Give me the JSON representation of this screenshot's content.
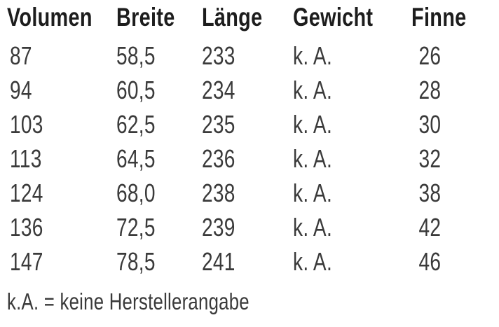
{
  "table": {
    "headers": [
      "Volumen",
      "Breite",
      "Länge",
      "Gewicht",
      "Finne"
    ],
    "rows": [
      [
        "87",
        "58,5",
        "233",
        "k. A.",
        "26"
      ],
      [
        "94",
        "60,5",
        "234",
        "k. A.",
        "28"
      ],
      [
        "103",
        "62,5",
        "235",
        "k. A.",
        "30"
      ],
      [
        "113",
        "64,5",
        "236",
        "k. A.",
        "32"
      ],
      [
        "124",
        "68,0",
        "238",
        "k. A.",
        "38"
      ],
      [
        "136",
        "72,5",
        "239",
        "k. A.",
        "42"
      ],
      [
        "147",
        "78,5",
        "241",
        "k. A.",
        "46"
      ]
    ]
  },
  "footnote": "k.A. = keine Herstellerangabe",
  "colors": {
    "header_text": "#1d1d1d",
    "body_text": "#3a3a3a",
    "background": "#ffffff"
  }
}
